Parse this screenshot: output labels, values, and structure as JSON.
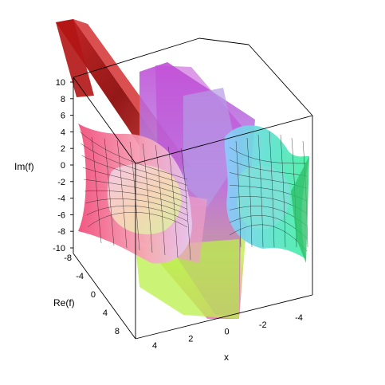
{
  "chart_data": {
    "type": "surface3d",
    "title": "",
    "axes": {
      "x": {
        "label": "x",
        "ticks": [
          "4",
          "2",
          "0",
          "-2",
          "-4"
        ]
      },
      "re": {
        "label": "Re(f)",
        "ticks": [
          "-8",
          "-4",
          "0",
          "4",
          "8"
        ]
      },
      "im": {
        "label": "Im(f)",
        "ticks": [
          "10",
          "8",
          "6",
          "4",
          "2",
          "0",
          "-2",
          "-4",
          "-6",
          "-8",
          "-10"
        ]
      }
    },
    "ranges": {
      "x": [
        -5,
        5
      ],
      "re": [
        -10,
        10
      ],
      "im": [
        -10,
        10
      ]
    },
    "surfaces": [
      {
        "name": "",
        "color_left": "#f04f7a",
        "color_right": "#4fe8a8"
      },
      {
        "name": "",
        "color": "#b01010"
      },
      {
        "name": "",
        "color": "#c054d8"
      }
    ],
    "colors": {
      "deep_red": "#a70f0f",
      "magenta": "#c24ad6",
      "lime": "#b9f04a",
      "pink": "#f26a8e",
      "cyan": "#49e0c4",
      "lavender": "#b59ae6"
    }
  }
}
